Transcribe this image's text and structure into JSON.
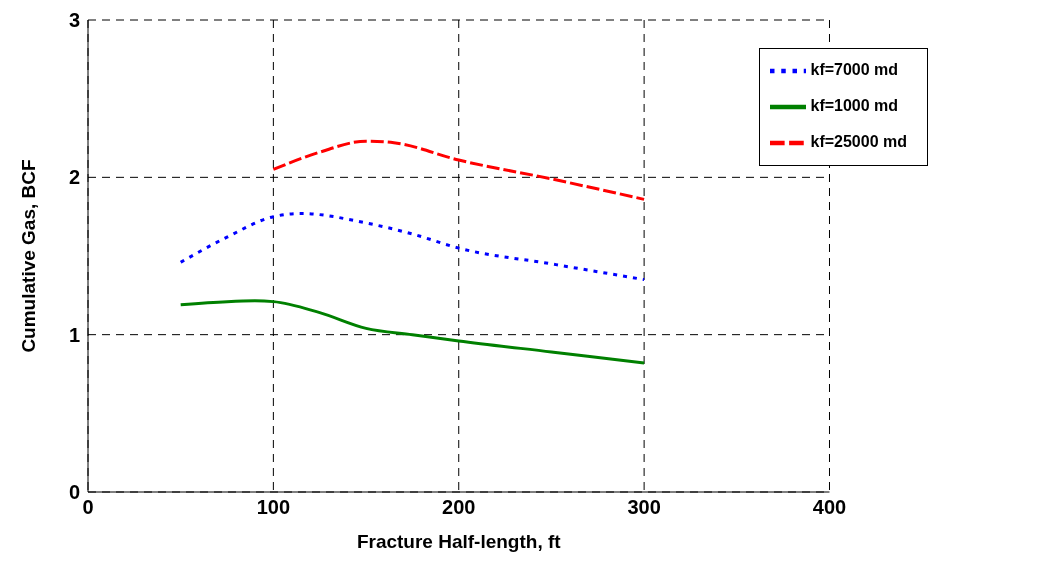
{
  "chart_data": {
    "type": "line",
    "xlabel": "Fracture Half-length, ft",
    "ylabel": "Cumulative Gas, BCF",
    "xlim": [
      0,
      400
    ],
    "xticks": [
      0,
      100,
      200,
      300,
      400
    ],
    "ylim": [
      0,
      3
    ],
    "yticks": [
      0,
      1,
      2,
      3
    ],
    "grid": true,
    "legend": "top right",
    "marker": "none",
    "series": [
      {
        "name": "kf=7000 md",
        "color": "#0000ff",
        "line_style": "dotted",
        "x": [
          50,
          75,
          100,
          115,
          150,
          175,
          200,
          250,
          300
        ],
        "values": [
          1.46,
          1.62,
          1.75,
          1.77,
          1.71,
          1.64,
          1.55,
          1.45,
          1.35
        ]
      },
      {
        "name": "kf=1000 md",
        "color": "#008000",
        "line_style": "solid",
        "x": [
          50,
          75,
          90,
          100,
          125,
          150,
          175,
          200,
          250,
          300
        ],
        "values": [
          1.19,
          1.21,
          1.215,
          1.21,
          1.14,
          1.04,
          1.0,
          0.96,
          0.89,
          0.82
        ]
      },
      {
        "name": "kf=25000 md",
        "color": "#ff0000",
        "line_style": "dashed",
        "x": [
          100,
          125,
          150,
          165,
          200,
          250,
          300
        ],
        "values": [
          2.05,
          2.16,
          2.23,
          2.22,
          2.11,
          1.99,
          1.86
        ]
      }
    ]
  }
}
